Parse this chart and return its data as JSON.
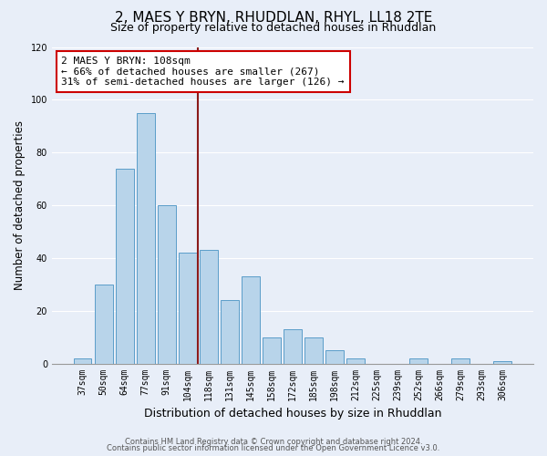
{
  "title": "2, MAES Y BRYN, RHUDDLAN, RHYL, LL18 2TE",
  "subtitle": "Size of property relative to detached houses in Rhuddlan",
  "xlabel": "Distribution of detached houses by size in Rhuddlan",
  "ylabel": "Number of detached properties",
  "bar_labels": [
    "37sqm",
    "50sqm",
    "64sqm",
    "77sqm",
    "91sqm",
    "104sqm",
    "118sqm",
    "131sqm",
    "145sqm",
    "158sqm",
    "172sqm",
    "185sqm",
    "198sqm",
    "212sqm",
    "225sqm",
    "239sqm",
    "252sqm",
    "266sqm",
    "279sqm",
    "293sqm",
    "306sqm"
  ],
  "bar_values": [
    2,
    30,
    74,
    95,
    60,
    42,
    43,
    24,
    33,
    10,
    13,
    10,
    5,
    2,
    0,
    0,
    2,
    0,
    2,
    0,
    1
  ],
  "bar_color": "#b8d4ea",
  "bar_edge_color": "#5b9dc9",
  "vline_color": "#8b1a1a",
  "annotation_text": "2 MAES Y BRYN: 108sqm\n← 66% of detached houses are smaller (267)\n31% of semi-detached houses are larger (126) →",
  "annotation_box_color": "#ffffff",
  "annotation_box_edge": "#cc0000",
  "ylim": [
    0,
    120
  ],
  "yticks": [
    0,
    20,
    40,
    60,
    80,
    100,
    120
  ],
  "footer_line1": "Contains HM Land Registry data © Crown copyright and database right 2024.",
  "footer_line2": "Contains public sector information licensed under the Open Government Licence v3.0.",
  "background_color": "#e8eef8",
  "plot_background": "#e8eef8",
  "grid_color": "#ffffff",
  "title_fontsize": 11,
  "subtitle_fontsize": 9,
  "tick_fontsize": 7,
  "ylabel_fontsize": 8.5,
  "xlabel_fontsize": 9,
  "footer_fontsize": 6,
  "vline_bar_index": 5,
  "annotation_fontsize": 8
}
